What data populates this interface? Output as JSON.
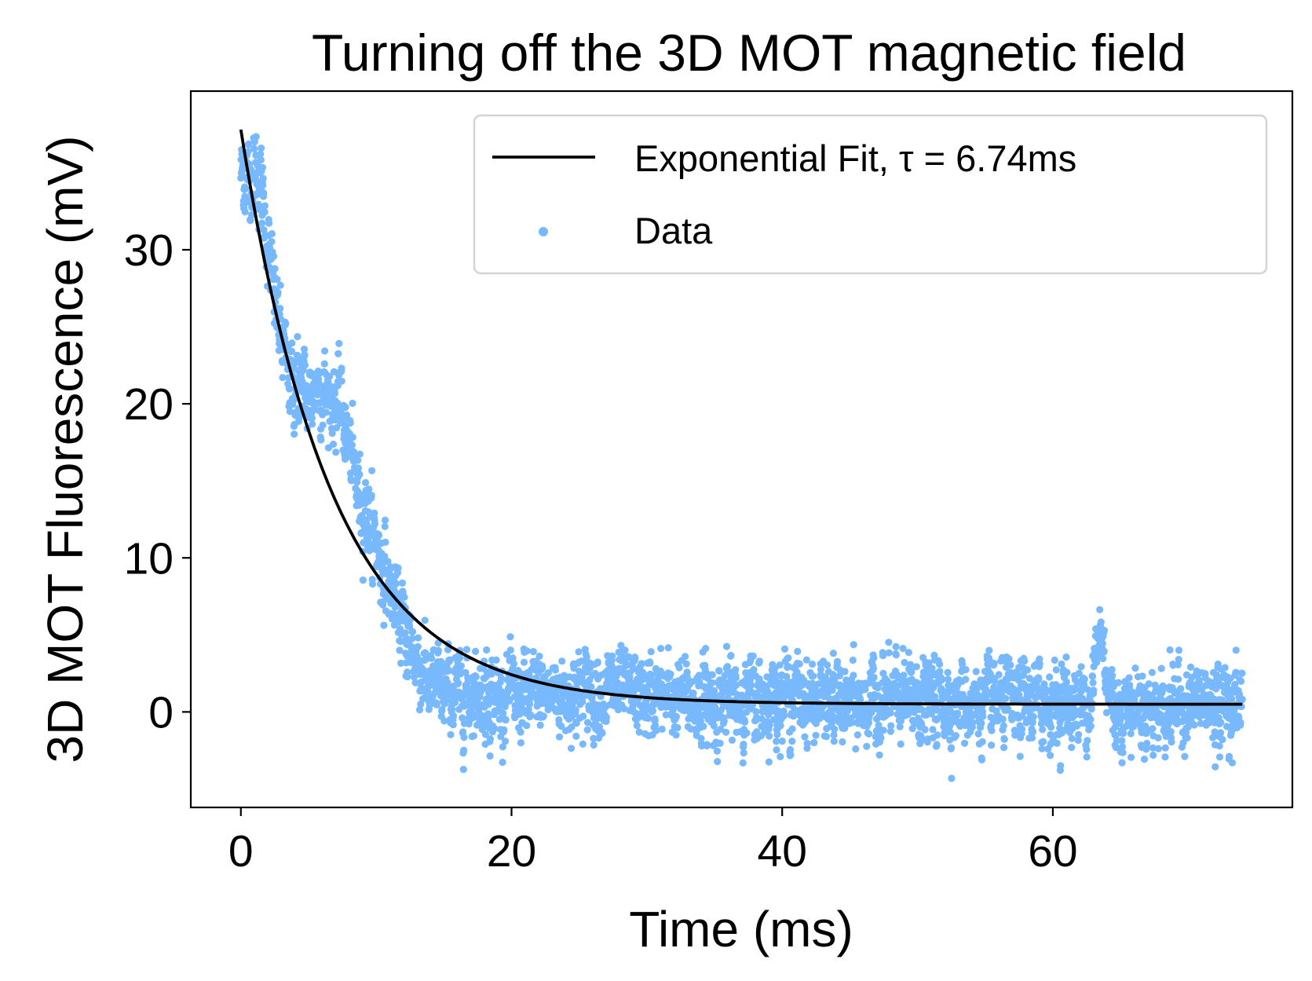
{
  "chart_data": {
    "type": "scatter",
    "title": "Turning off the 3D MOT magnetic field",
    "xlabel": "Time (ms)",
    "ylabel": "3D MOT Fluorescence (mV)",
    "xlim": [
      -3.7,
      77.7
    ],
    "ylim": [
      -6.2,
      40.3
    ],
    "xticks": [
      0,
      20,
      40,
      60
    ],
    "yticks": [
      0,
      10,
      20,
      30
    ],
    "xtick_labels": [
      "0",
      "20",
      "40",
      "60"
    ],
    "ytick_labels": [
      "0",
      "10",
      "20",
      "30"
    ],
    "grid": false,
    "legend_position": "upper right",
    "series": [
      {
        "name": "Exponential Fit, τ = 6.74ms",
        "kind": "line",
        "color": "#000000",
        "model": "a*exp(-t/tau)+c",
        "params": {
          "a": 37.3,
          "tau": 6.74,
          "c": 0.5
        },
        "x_range": [
          0,
          74
        ]
      },
      {
        "name": "Data",
        "kind": "scatter",
        "color": "#78b8fc",
        "x_range": [
          0,
          74
        ],
        "n_points": 4000,
        "noise_std": 1.3,
        "profile": [
          [
            0,
            35
          ],
          [
            0.5,
            34.5
          ],
          [
            1,
            35.5
          ],
          [
            1.5,
            34
          ],
          [
            2,
            30
          ],
          [
            2.5,
            27
          ],
          [
            3,
            24
          ],
          [
            3.5,
            22
          ],
          [
            4,
            21
          ],
          [
            4.5,
            21.5
          ],
          [
            5,
            20
          ],
          [
            5.5,
            21.5
          ],
          [
            6,
            21
          ],
          [
            7,
            20
          ],
          [
            7.5,
            19.5
          ],
          [
            8,
            17
          ],
          [
            8.5,
            15
          ],
          [
            9,
            13.5
          ],
          [
            9.5,
            12.5
          ],
          [
            10,
            11
          ],
          [
            11,
            8
          ],
          [
            12,
            5.5
          ],
          [
            13,
            3.5
          ],
          [
            14,
            1.5
          ],
          [
            15,
            1.3
          ],
          [
            20,
            1.0
          ],
          [
            26,
            1.4
          ],
          [
            35,
            0.6
          ],
          [
            40,
            1.2
          ],
          [
            45,
            0.4
          ],
          [
            50,
            0.8
          ],
          [
            55,
            0.5
          ],
          [
            60,
            0.6
          ],
          [
            62,
            0.5
          ],
          [
            62.8,
            1.0
          ],
          [
            63.2,
            3.5
          ],
          [
            63.5,
            5.5
          ],
          [
            64,
            2.5
          ],
          [
            64.5,
            0.0
          ],
          [
            65,
            0.3
          ],
          [
            70,
            0.5
          ],
          [
            74,
            0.6
          ]
        ]
      }
    ]
  }
}
